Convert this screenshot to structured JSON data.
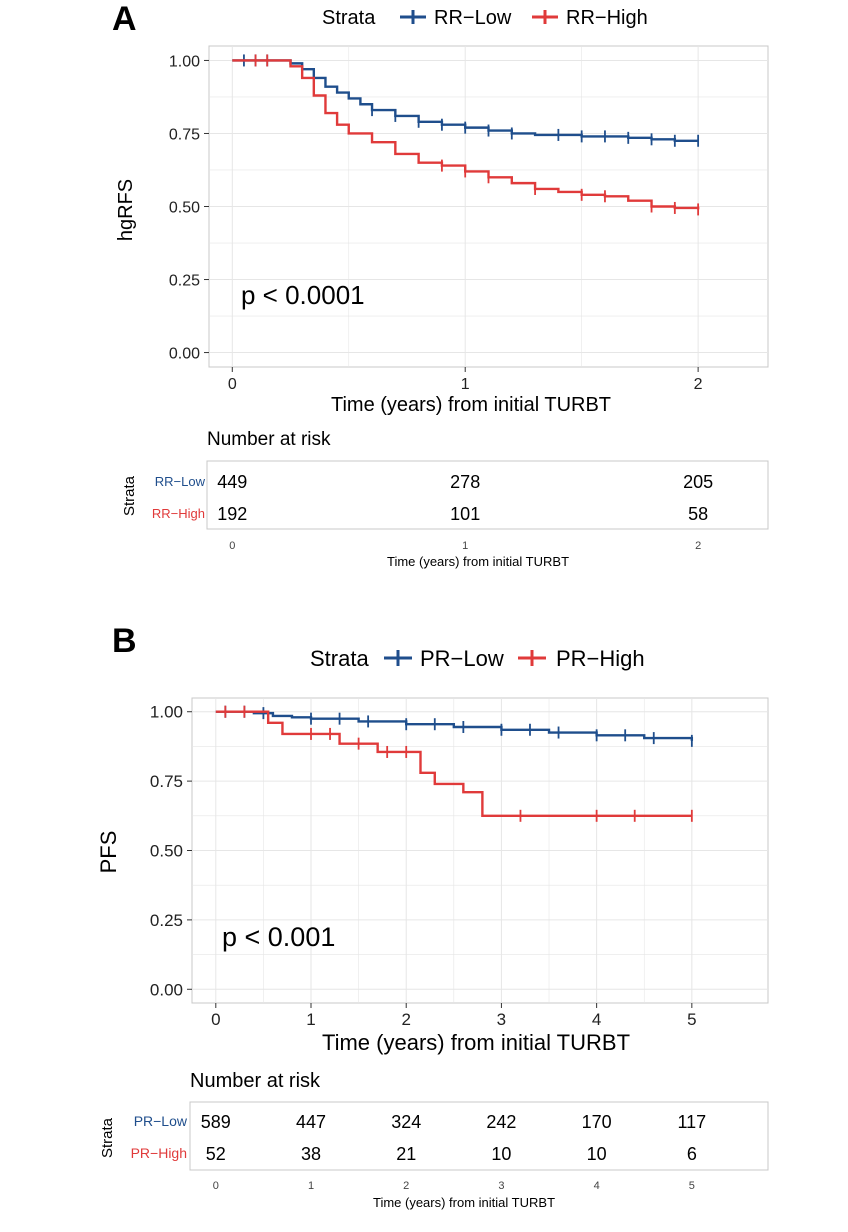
{
  "panels": [
    {
      "letter": "A",
      "legend": {
        "title": "Strata",
        "entries": [
          "RR−Low",
          "RR−High"
        ]
      },
      "pvalue": "p < 0.0001",
      "risk_table": {
        "title": "Number at risk",
        "strata_label": "Strata",
        "xlabel": "Time (years) from initial TURBT",
        "rows": [
          {
            "label": "RR−Low",
            "counts": [
              "449",
              "278",
              "205"
            ]
          },
          {
            "label": "RR−High",
            "counts": [
              "192",
              "101",
              "58"
            ]
          }
        ],
        "ticks": [
          "0",
          "1",
          "2"
        ]
      }
    },
    {
      "letter": "B",
      "legend": {
        "title": "Strata",
        "entries": [
          "PR−Low",
          "PR−High"
        ]
      },
      "pvalue": "p < 0.001",
      "risk_table": {
        "title": "Number at risk",
        "strata_label": "Strata",
        "xlabel": "Time (years) from initial TURBT",
        "rows": [
          {
            "label": "PR−Low",
            "counts": [
              "589",
              "447",
              "324",
              "242",
              "170",
              "117"
            ]
          },
          {
            "label": "PR−High",
            "counts": [
              "52",
              "38",
              "21",
              "10",
              "10",
              "6"
            ]
          }
        ],
        "ticks": [
          "0",
          "1",
          "2",
          "3",
          "4",
          "5"
        ]
      }
    }
  ],
  "colors": {
    "low": "#1f4e8c",
    "high": "#e03a3a",
    "grid": "#e6e6e6",
    "panel_border": "#d0d0d0"
  },
  "chart_data": [
    {
      "type": "line",
      "xlabel": "Time (years) from initial TURBT",
      "ylabel": "hgRFS",
      "xticks": [
        "0",
        "1",
        "2"
      ],
      "yticks": [
        "0.00",
        "0.25",
        "0.50",
        "0.75",
        "1.00"
      ],
      "xlim": [
        -0.1,
        2.3
      ],
      "ylim": [
        0,
        1
      ],
      "grid": true,
      "legend_position": "top",
      "series": [
        {
          "name": "RR−Low",
          "x": [
            0,
            0.25,
            0.3,
            0.35,
            0.4,
            0.45,
            0.5,
            0.55,
            0.6,
            0.7,
            0.8,
            0.9,
            1.0,
            1.1,
            1.2,
            1.3,
            1.4,
            1.5,
            1.6,
            1.7,
            1.8,
            1.9,
            2.0
          ],
          "y": [
            1.0,
            0.99,
            0.97,
            0.94,
            0.91,
            0.89,
            0.87,
            0.85,
            0.83,
            0.81,
            0.79,
            0.78,
            0.77,
            0.76,
            0.75,
            0.745,
            0.745,
            0.74,
            0.74,
            0.735,
            0.73,
            0.725,
            0.725
          ],
          "censor_x": [
            0.05,
            0.1,
            0.15,
            0.6,
            0.7,
            0.8,
            0.9,
            1.0,
            1.1,
            1.2,
            1.4,
            1.5,
            1.6,
            1.7,
            1.8,
            1.9,
            2.0
          ]
        },
        {
          "name": "RR−High",
          "x": [
            0,
            0.25,
            0.3,
            0.35,
            0.4,
            0.45,
            0.5,
            0.6,
            0.7,
            0.8,
            0.9,
            1.0,
            1.1,
            1.2,
            1.3,
            1.4,
            1.5,
            1.6,
            1.7,
            1.8,
            1.9,
            2.0
          ],
          "y": [
            1.0,
            0.98,
            0.94,
            0.88,
            0.82,
            0.78,
            0.75,
            0.72,
            0.68,
            0.65,
            0.64,
            0.62,
            0.6,
            0.58,
            0.56,
            0.55,
            0.54,
            0.535,
            0.52,
            0.5,
            0.495,
            0.49
          ],
          "censor_x": [
            0.1,
            0.15,
            0.9,
            1.0,
            1.1,
            1.3,
            1.5,
            1.6,
            1.8,
            1.9,
            2.0
          ]
        }
      ]
    },
    {
      "type": "line",
      "xlabel": "Time (years) from initial TURBT",
      "ylabel": "PFS",
      "xticks": [
        "0",
        "1",
        "2",
        "3",
        "4",
        "5"
      ],
      "yticks": [
        "0.00",
        "0.25",
        "0.50",
        "0.75",
        "1.00"
      ],
      "xlim": [
        -0.25,
        5.8
      ],
      "ylim": [
        0,
        1
      ],
      "grid": true,
      "legend_position": "top",
      "series": [
        {
          "name": "PR−Low",
          "x": [
            0,
            0.4,
            0.6,
            0.8,
            1.0,
            1.5,
            2.0,
            2.5,
            3.0,
            3.5,
            4.0,
            4.5,
            5.0
          ],
          "y": [
            1.0,
            0.995,
            0.985,
            0.98,
            0.975,
            0.965,
            0.955,
            0.945,
            0.935,
            0.925,
            0.915,
            0.905,
            0.895
          ],
          "censor_x": [
            0.1,
            0.3,
            0.5,
            1.0,
            1.3,
            1.6,
            2.0,
            2.3,
            2.6,
            3.0,
            3.3,
            3.6,
            4.0,
            4.3,
            4.6,
            5.0
          ]
        },
        {
          "name": "PR−High",
          "x": [
            0,
            0.55,
            0.7,
            1.3,
            1.7,
            2.15,
            2.3,
            2.6,
            2.8,
            3.0,
            4.0,
            5.0
          ],
          "y": [
            1.0,
            0.96,
            0.92,
            0.885,
            0.855,
            0.78,
            0.74,
            0.71,
            0.625,
            0.625,
            0.625,
            0.625
          ],
          "censor_x": [
            0.1,
            0.3,
            1.0,
            1.2,
            1.5,
            1.8,
            2.0,
            3.2,
            4.0,
            4.4,
            5.0
          ]
        }
      ]
    }
  ]
}
